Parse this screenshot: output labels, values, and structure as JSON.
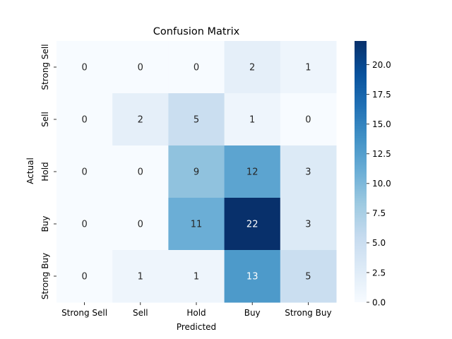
{
  "chart_data": {
    "type": "heatmap",
    "title": "Confusion Matrix",
    "xlabel": "Predicted",
    "ylabel": "Actual",
    "x_categories": [
      "Strong Sell",
      "Sell",
      "Hold",
      "Buy",
      "Strong Buy"
    ],
    "y_categories": [
      "Strong Sell",
      "Sell",
      "Hold",
      "Buy",
      "Strong Buy"
    ],
    "values": [
      [
        0,
        0,
        0,
        2,
        1
      ],
      [
        0,
        2,
        5,
        1,
        0
      ],
      [
        0,
        0,
        9,
        12,
        3
      ],
      [
        0,
        0,
        11,
        22,
        3
      ],
      [
        0,
        1,
        1,
        13,
        5
      ]
    ],
    "colorbar": {
      "range": [
        0,
        22
      ],
      "ticks": [
        0.0,
        2.5,
        5.0,
        7.5,
        10.0,
        12.5,
        15.0,
        17.5,
        20.0
      ],
      "tick_labels": [
        "0.0",
        "2.5",
        "5.0",
        "7.5",
        "10.0",
        "12.5",
        "15.0",
        "17.5",
        "20.0"
      ],
      "colormap": "Blues",
      "low_color": "#f7fbff",
      "high_color": "#08306b"
    },
    "annotations": true,
    "grid": false,
    "legend": "colorbar-right"
  }
}
